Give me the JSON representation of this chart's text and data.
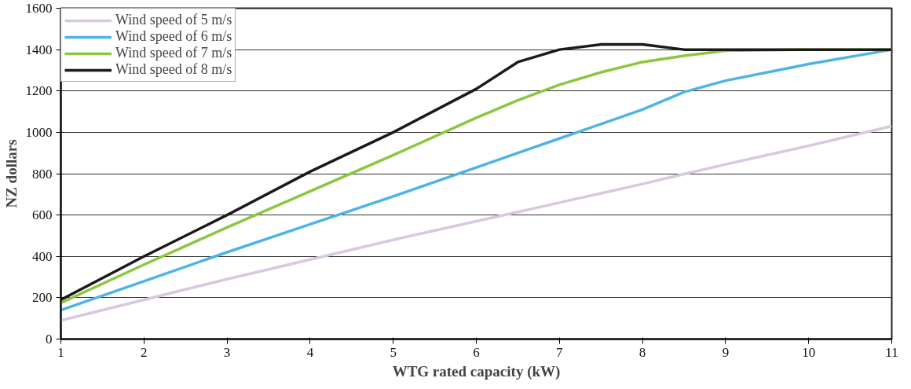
{
  "chart_data": {
    "type": "line",
    "xlabel": "WTG rated capacity (kW)",
    "ylabel": "NZ dollars",
    "x": [
      1,
      2,
      3,
      4,
      5,
      6,
      6.5,
      7,
      7.5,
      8,
      8.5,
      9,
      10,
      11
    ],
    "series": [
      {
        "name": "Wind speed of 5 m/s",
        "color": "#d8c8e0",
        "values": [
          90,
          190,
          290,
          385,
          480,
          570,
          615,
          660,
          705,
          750,
          798,
          845,
          935,
          1030
        ]
      },
      {
        "name": "Wind speed of 6 m/s",
        "color": "#4db3e8",
        "values": [
          140,
          280,
          420,
          555,
          690,
          830,
          900,
          970,
          1040,
          1110,
          1195,
          1250,
          1330,
          1400
        ]
      },
      {
        "name": "Wind speed of 7 m/s",
        "color": "#8cc63f",
        "values": [
          175,
          360,
          540,
          715,
          890,
          1070,
          1155,
          1230,
          1290,
          1340,
          1370,
          1395,
          1400,
          1400
        ]
      },
      {
        "name": "Wind speed of 8 m/s",
        "color": "#1a1a1a",
        "values": [
          190,
          400,
          600,
          810,
          1000,
          1210,
          1340,
          1400,
          1425,
          1425,
          1400,
          1400,
          1400,
          1400
        ]
      }
    ],
    "xlim": [
      1,
      11
    ],
    "xticks": [
      1,
      2,
      3,
      4,
      5,
      6,
      7,
      8,
      9,
      10,
      11
    ],
    "ylim": [
      0,
      1600
    ],
    "yticks": [
      0,
      200,
      400,
      600,
      800,
      1000,
      1200,
      1400,
      1600
    ],
    "grid": "y",
    "legend": "top left",
    "marker": "none",
    "line_style": "solid"
  }
}
